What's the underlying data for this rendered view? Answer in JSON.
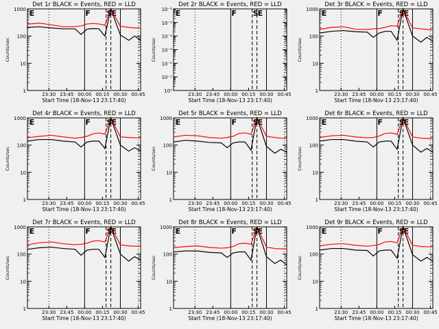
{
  "figure": {
    "background": "#f0f0f0"
  },
  "chart_data": [
    {
      "type": "line",
      "title": "Det 1r BLACK = Events, RED = LLD",
      "xlabel": "Start Time (18-Nov-13 23:17:40)",
      "ylabel": "Counts/sec",
      "yscale": "log",
      "ylim": [
        1,
        1000
      ],
      "ytick_labels": [
        "1",
        "10",
        "100",
        "1000"
      ],
      "xtick_labels": [
        "23:30",
        "23:45",
        "00:00",
        "00:15",
        "00:30",
        "00:45"
      ],
      "markers": [
        "E",
        "F",
        "S",
        "E"
      ],
      "series": [
        {
          "color": "#ff0000",
          "x": [
            0,
            10,
            20,
            30,
            40,
            45,
            50,
            55,
            60,
            65,
            70,
            78,
            85,
            90,
            95
          ],
          "y": [
            275,
            300,
            260,
            220,
            225,
            235,
            280,
            290,
            280,
            250,
            1000,
            230,
            210,
            200,
            200
          ]
        },
        {
          "color": "#000000",
          "x": [
            0,
            10,
            20,
            30,
            40,
            45,
            50,
            55,
            60,
            65,
            70,
            78,
            85,
            90,
            95
          ],
          "y": [
            210,
            220,
            200,
            185,
            185,
            115,
            180,
            190,
            185,
            100,
            1000,
            110,
            70,
            100,
            70
          ]
        }
      ]
    },
    {
      "type": "line",
      "title": "Det 2r BLACK = Events, RED = LLD",
      "xlabel": "Start Time (18-Nov-13 23:17:40)",
      "ylabel": "Counts/sec",
      "yscale": "log",
      "ylim": [
        1,
        1e-06
      ],
      "ytick_labels": [
        "10⁰",
        "10⁻¹",
        "10⁻²",
        "10⁻³",
        "10⁻⁴",
        "10⁻⁵",
        "10⁻⁶"
      ],
      "xtick_labels": [
        "23:30",
        "23:45",
        "00:00",
        "00:15",
        "00:30",
        "00:45"
      ],
      "markers": [
        "E",
        "F",
        "S",
        "E"
      ],
      "series": []
    },
    {
      "type": "line",
      "title": "Det 3r BLACK = Events, RED = LLD",
      "xlabel": "Start Time (18-Nov-13 23:17:40)",
      "ylabel": "Counts/sec",
      "yscale": "log",
      "ylim": [
        1,
        1000
      ],
      "ytick_labels": [
        "1",
        "10",
        "100",
        "1000"
      ],
      "xtick_labels": [
        "23:30",
        "23:45",
        "00:00",
        "00:15",
        "00:30",
        "00:45"
      ],
      "markers": [
        "E",
        "F",
        "S",
        "E"
      ],
      "series": [
        {
          "color": "#ff0000",
          "x": [
            0,
            10,
            20,
            30,
            40,
            45,
            50,
            55,
            60,
            65,
            70,
            78,
            85,
            90,
            95
          ],
          "y": [
            175,
            210,
            220,
            180,
            175,
            185,
            190,
            210,
            240,
            230,
            1000,
            200,
            185,
            175,
            170
          ]
        },
        {
          "color": "#000000",
          "x": [
            0,
            10,
            20,
            30,
            40,
            45,
            50,
            55,
            60,
            65,
            70,
            78,
            85,
            90,
            95
          ],
          "y": [
            130,
            150,
            160,
            145,
            140,
            90,
            130,
            150,
            150,
            70,
            1000,
            100,
            60,
            90,
            65
          ]
        }
      ]
    },
    {
      "type": "line",
      "title": "Det 4r BLACK = Events, RED = LLD",
      "xlabel": "Start Time (18-Nov-13 23:17:40)",
      "ylabel": "Counts/sec",
      "yscale": "log",
      "ylim": [
        1,
        1000
      ],
      "ytick_labels": [
        "1",
        "10",
        "100",
        "1000"
      ],
      "xtick_labels": [
        "23:30",
        "23:45",
        "00:00",
        "00:15",
        "00:30",
        "00:45"
      ],
      "markers": [
        "E",
        "F",
        "S",
        "E"
      ],
      "series": [
        {
          "color": "#ff0000",
          "x": [
            0,
            10,
            20,
            30,
            40,
            45,
            50,
            55,
            60,
            65,
            70,
            78,
            85,
            90,
            95
          ],
          "y": [
            185,
            210,
            230,
            200,
            180,
            190,
            210,
            260,
            280,
            250,
            1000,
            200,
            190,
            185,
            185
          ]
        },
        {
          "color": "#000000",
          "x": [
            0,
            10,
            20,
            30,
            40,
            45,
            50,
            55,
            60,
            65,
            70,
            78,
            85,
            90,
            95
          ],
          "y": [
            140,
            160,
            160,
            140,
            130,
            85,
            130,
            140,
            140,
            75,
            1000,
            100,
            60,
            80,
            60
          ]
        }
      ]
    },
    {
      "type": "line",
      "title": "Det 5r BLACK = Events, RED = LLD",
      "xlabel": "Start Time (18-Nov-13 23:17:40)",
      "ylabel": "Counts/sec",
      "yscale": "log",
      "ylim": [
        1,
        1000
      ],
      "ytick_labels": [
        "1",
        "10",
        "100",
        "1000"
      ],
      "xtick_labels": [
        "23:30",
        "23:45",
        "00:00",
        "00:15",
        "00:30",
        "00:45"
      ],
      "markers": [
        "E",
        "F",
        "S",
        "E"
      ],
      "series": [
        {
          "color": "#ff0000",
          "x": [
            0,
            10,
            20,
            30,
            40,
            45,
            50,
            55,
            60,
            65,
            70,
            78,
            85,
            90,
            95
          ],
          "y": [
            200,
            230,
            220,
            190,
            180,
            190,
            210,
            270,
            280,
            250,
            1000,
            210,
            190,
            180,
            180
          ]
        },
        {
          "color": "#000000",
          "x": [
            0,
            10,
            20,
            30,
            40,
            45,
            50,
            55,
            60,
            65,
            70,
            78,
            85,
            90,
            95
          ],
          "y": [
            130,
            150,
            140,
            125,
            120,
            80,
            120,
            130,
            130,
            65,
            1000,
            90,
            50,
            70,
            55
          ]
        }
      ]
    },
    {
      "type": "line",
      "title": "Det 6r BLACK = Events, RED = LLD",
      "xlabel": "Start Time (18-Nov-13 23:17:40)",
      "ylabel": "Counts/sec",
      "yscale": "log",
      "ylim": [
        1,
        1000
      ],
      "ytick_labels": [
        "1",
        "10",
        "100",
        "1000"
      ],
      "xtick_labels": [
        "23:30",
        "23:45",
        "00:00",
        "00:15",
        "00:30",
        "00:45"
      ],
      "markers": [
        "E",
        "F",
        "S",
        "E"
      ],
      "series": [
        {
          "color": "#ff0000",
          "x": [
            0,
            10,
            20,
            30,
            40,
            45,
            50,
            55,
            60,
            65,
            70,
            78,
            85,
            90,
            95
          ],
          "y": [
            190,
            220,
            230,
            200,
            185,
            190,
            215,
            270,
            280,
            250,
            1000,
            200,
            180,
            175,
            175
          ]
        },
        {
          "color": "#000000",
          "x": [
            0,
            10,
            20,
            30,
            40,
            45,
            50,
            55,
            60,
            65,
            70,
            78,
            85,
            90,
            95
          ],
          "y": [
            140,
            160,
            160,
            140,
            130,
            85,
            130,
            140,
            140,
            70,
            1000,
            100,
            55,
            75,
            55
          ]
        }
      ]
    },
    {
      "type": "line",
      "title": "Det 7r BLACK = Events, RED = LLD",
      "xlabel": "Start Time (18-Nov-13 23:17:40)",
      "ylabel": "Counts/sec",
      "yscale": "log",
      "ylim": [
        1,
        1000
      ],
      "ytick_labels": [
        "1",
        "10",
        "100",
        "1000"
      ],
      "xtick_labels": [
        "23:30",
        "23:45",
        "00:00",
        "00:15",
        "00:30",
        "00:45"
      ],
      "markers": [
        "E",
        "F",
        "S",
        "E"
      ],
      "series": [
        {
          "color": "#ff0000",
          "x": [
            0,
            10,
            20,
            30,
            40,
            45,
            50,
            55,
            60,
            65,
            70,
            78,
            85,
            90,
            95
          ],
          "y": [
            220,
            260,
            280,
            240,
            220,
            230,
            250,
            300,
            310,
            280,
            1000,
            220,
            200,
            195,
            195
          ]
        },
        {
          "color": "#000000",
          "x": [
            0,
            10,
            20,
            30,
            40,
            45,
            50,
            55,
            60,
            65,
            70,
            78,
            85,
            90,
            95
          ],
          "y": [
            150,
            170,
            180,
            160,
            150,
            90,
            140,
            150,
            150,
            75,
            1000,
            100,
            55,
            80,
            60
          ]
        }
      ]
    },
    {
      "type": "line",
      "title": "Det 8r BLACK = Events, RED = LLD",
      "xlabel": "Start Time (18-Nov-13 23:17:40)",
      "ylabel": "Counts/sec",
      "yscale": "log",
      "ylim": [
        1,
        1000
      ],
      "ytick_labels": [
        "1",
        "10",
        "100",
        "1000"
      ],
      "xtick_labels": [
        "23:30",
        "23:45",
        "00:00",
        "00:15",
        "00:30",
        "00:45"
      ],
      "markers": [
        "E",
        "F",
        "S",
        "E"
      ],
      "series": [
        {
          "color": "#ff0000",
          "x": [
            0,
            10,
            20,
            30,
            40,
            45,
            50,
            55,
            60,
            65,
            70,
            78,
            85,
            90,
            95
          ],
          "y": [
            170,
            190,
            200,
            175,
            165,
            170,
            190,
            240,
            250,
            230,
            1000,
            180,
            160,
            155,
            155
          ]
        },
        {
          "color": "#000000",
          "x": [
            0,
            10,
            20,
            30,
            40,
            45,
            50,
            55,
            60,
            65,
            70,
            78,
            85,
            90,
            95
          ],
          "y": [
            120,
            130,
            130,
            115,
            110,
            75,
            110,
            120,
            120,
            60,
            1000,
            80,
            45,
            60,
            40
          ]
        }
      ]
    },
    {
      "type": "line",
      "title": "Det 9r BLACK = Events, RED = LLD",
      "xlabel": "Start Time (18-Nov-13 23:17:40)",
      "ylabel": "Counts/sec",
      "yscale": "log",
      "ylim": [
        1,
        1000
      ],
      "ytick_labels": [
        "1",
        "10",
        "100",
        "1000"
      ],
      "xtick_labels": [
        "23:30",
        "23:45",
        "00:00",
        "00:15",
        "00:30",
        "00:45"
      ],
      "markers": [
        "E",
        "F",
        "S",
        "E"
      ],
      "series": [
        {
          "color": "#ff0000",
          "x": [
            0,
            10,
            20,
            30,
            40,
            45,
            50,
            55,
            60,
            65,
            70,
            78,
            85,
            90,
            95
          ],
          "y": [
            200,
            230,
            240,
            210,
            195,
            205,
            225,
            280,
            290,
            260,
            1000,
            210,
            190,
            185,
            185
          ]
        },
        {
          "color": "#000000",
          "x": [
            0,
            10,
            20,
            30,
            40,
            45,
            50,
            55,
            60,
            65,
            70,
            78,
            85,
            90,
            95
          ],
          "y": [
            140,
            160,
            160,
            140,
            135,
            85,
            130,
            140,
            140,
            70,
            1000,
            95,
            55,
            75,
            55
          ]
        }
      ]
    }
  ]
}
